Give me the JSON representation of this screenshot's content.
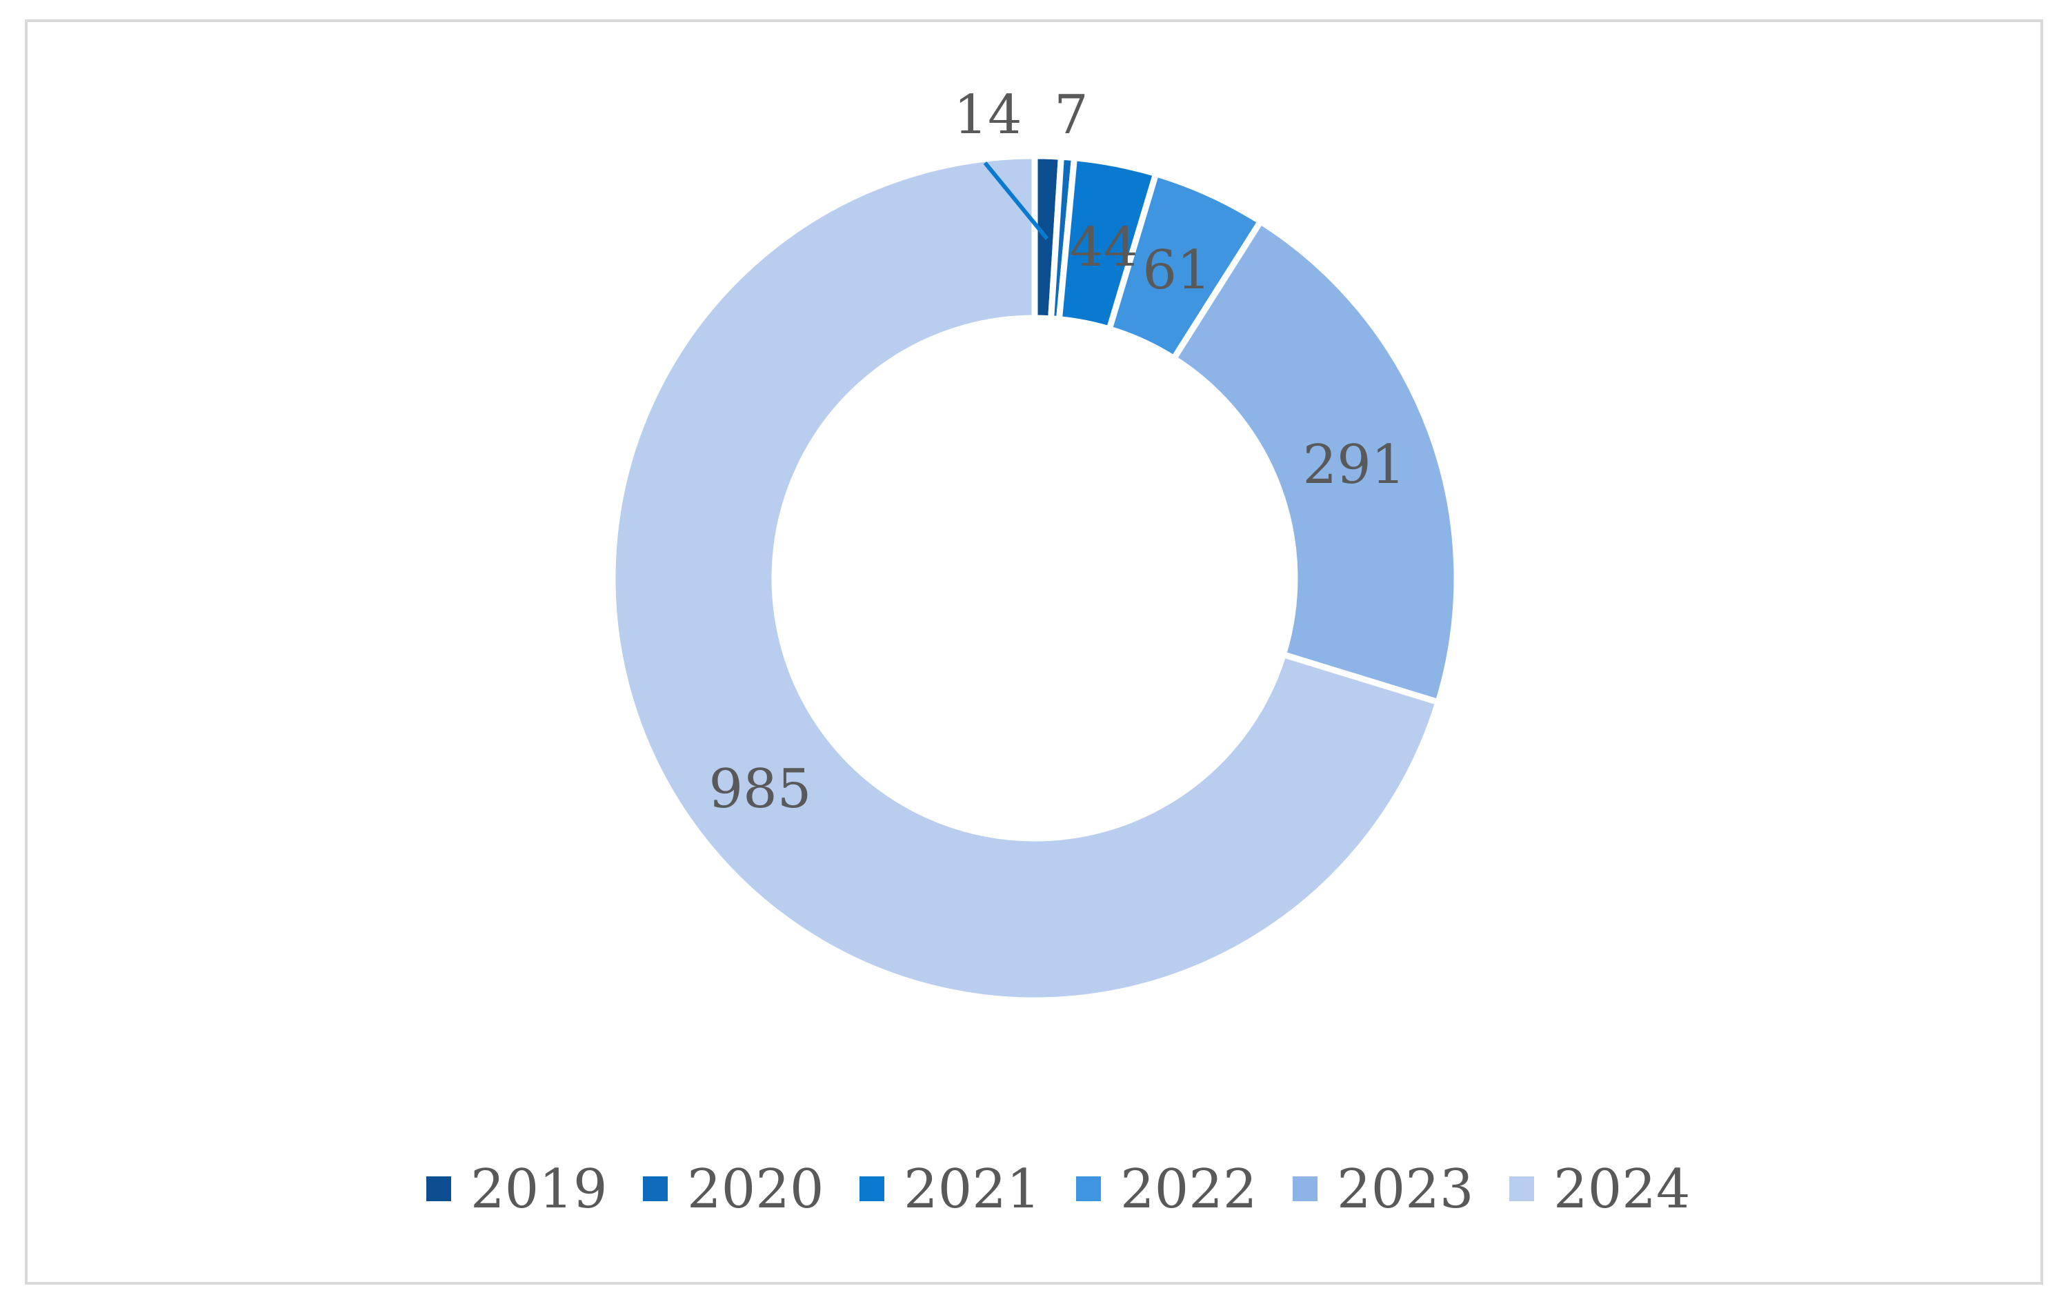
{
  "chart_data": {
    "type": "pie",
    "donut": true,
    "categories": [
      "2019",
      "2020",
      "2021",
      "2022",
      "2023",
      "2024"
    ],
    "values": [
      14,
      7,
      44,
      61,
      291,
      985
    ],
    "colors": [
      "#0b4f91",
      "#0f6cbd",
      "#0a7ad1",
      "#3f95e0",
      "#8db4e7",
      "#b9cdee"
    ],
    "data_labels": [
      "14",
      "7",
      "44",
      "61",
      "291",
      "985"
    ],
    "legend_position": "bottom",
    "title": ""
  }
}
